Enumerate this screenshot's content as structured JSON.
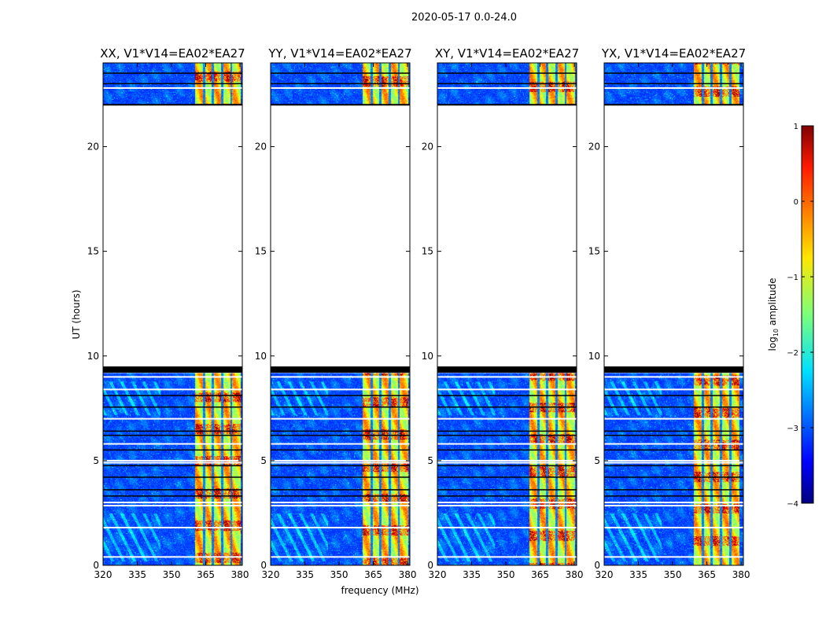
{
  "figure": {
    "suptitle": "2020-05-17 0.0-24.0",
    "xlabel": "frequency (MHz)",
    "ylabel": "UT (hours)"
  },
  "colors": {
    "background": "#ffffff",
    "axes": "#000000",
    "gap": "#ffffff",
    "flag": "#000000"
  },
  "chart_data": {
    "type": "heatmap",
    "x_range": [
      320,
      381
    ],
    "y_range": [
      0,
      24
    ],
    "x_ticks": [
      320,
      335,
      350,
      365,
      380
    ],
    "y_ticks": [
      0,
      5,
      10,
      15,
      20
    ],
    "coverage_hours": [
      [
        0,
        9.2
      ],
      [
        22.0,
        24.0
      ]
    ],
    "flagged_hours": [
      [
        9.2,
        9.5
      ]
    ],
    "blank_hours": [
      [
        9.5,
        22.0
      ]
    ],
    "white_rows_hours": [
      0.4,
      1.8,
      2.85,
      3.0,
      4.9,
      5.0,
      5.8,
      7.0,
      8.4,
      9.0,
      22.8
    ],
    "black_rows_hours": [
      3.3,
      3.6,
      4.2,
      4.75,
      5.5,
      6.2,
      6.4,
      7.55,
      8.1,
      23.0,
      23.5
    ],
    "rfi_band_mhz": [
      360,
      380
    ],
    "rfi_channel_gaps_mhz": [
      364,
      368,
      372,
      376
    ],
    "panels": [
      {
        "title": "XX, V1*V14=EA02*EA27",
        "rfi_offset_mhz": 0
      },
      {
        "title": "YY, V1*V14=EA02*EA27",
        "rfi_offset_mhz": 0
      },
      {
        "title": "XY, V1*V14=EA02*EA27",
        "rfi_offset_mhz": 0
      },
      {
        "title": "YX, V1*V14=EA02*EA27",
        "rfi_offset_mhz": -1
      }
    ],
    "colorbar": {
      "label_prefix": "log",
      "label_sub": "10",
      "label_suffix": " amplitude",
      "range": [
        -4,
        1
      ],
      "ticks": [
        "1",
        "0",
        "−1",
        "−2",
        "−3",
        "−4"
      ],
      "tick_values": [
        1,
        0,
        -1,
        -2,
        -3,
        -4
      ]
    }
  }
}
